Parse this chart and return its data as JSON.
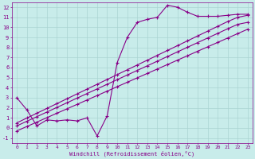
{
  "xlabel": "Windchill (Refroidissement éolien,°C)",
  "bg_color": "#c8ecea",
  "grid_color": "#aad4d2",
  "line_color": "#880088",
  "xlim": [
    -0.5,
    23.5
  ],
  "ylim": [
    -1.5,
    12.5
  ],
  "xticks": [
    0,
    1,
    2,
    3,
    4,
    5,
    6,
    7,
    8,
    9,
    10,
    11,
    12,
    13,
    14,
    15,
    16,
    17,
    18,
    19,
    20,
    21,
    22,
    23
  ],
  "yticks": [
    -1,
    0,
    1,
    2,
    3,
    4,
    5,
    6,
    7,
    8,
    9,
    10,
    11,
    12
  ],
  "wavy_x": [
    0,
    1,
    2,
    3,
    4,
    5,
    6,
    7,
    8,
    9,
    10,
    11,
    12,
    13,
    14,
    15,
    16,
    17,
    18,
    19,
    20,
    21,
    22,
    23
  ],
  "wavy_y": [
    3.0,
    1.8,
    0.2,
    0.8,
    0.7,
    0.8,
    0.7,
    1.0,
    -0.8,
    1.2,
    6.5,
    9.0,
    10.5,
    10.8,
    11.0,
    12.2,
    12.0,
    11.5,
    11.1,
    11.1,
    11.1,
    11.2,
    11.3,
    11.3
  ],
  "line1_x": [
    0,
    1,
    2,
    3,
    4,
    5,
    6,
    7,
    8,
    9,
    10,
    11,
    12,
    13,
    14,
    15,
    16,
    17,
    18,
    19,
    20,
    21,
    22,
    23
  ],
  "line1_y": [
    0.5,
    0.98,
    1.46,
    1.94,
    2.42,
    2.9,
    3.38,
    3.86,
    4.34,
    4.82,
    5.3,
    5.78,
    6.26,
    6.74,
    7.22,
    7.7,
    8.18,
    8.66,
    9.14,
    9.62,
    10.1,
    10.58,
    11.0,
    11.2
  ],
  "line2_x": [
    0,
    1,
    2,
    3,
    4,
    5,
    6,
    7,
    8,
    9,
    10,
    11,
    12,
    13,
    14,
    15,
    16,
    17,
    18,
    19,
    20,
    21,
    22,
    23
  ],
  "line2_y": [
    0.2,
    0.66,
    1.12,
    1.58,
    2.04,
    2.5,
    2.96,
    3.42,
    3.88,
    4.34,
    4.8,
    5.26,
    5.72,
    6.18,
    6.64,
    7.1,
    7.56,
    8.02,
    8.48,
    8.94,
    9.4,
    9.86,
    10.3,
    10.5
  ],
  "line3_x": [
    0,
    1,
    2,
    3,
    4,
    5,
    6,
    7,
    8,
    9,
    10,
    11,
    12,
    13,
    14,
    15,
    16,
    17,
    18,
    19,
    20,
    21,
    22,
    23
  ],
  "line3_y": [
    -0.3,
    0.14,
    0.58,
    1.02,
    1.46,
    1.9,
    2.34,
    2.78,
    3.22,
    3.66,
    4.1,
    4.54,
    4.98,
    5.42,
    5.86,
    6.3,
    6.74,
    7.18,
    7.62,
    8.06,
    8.5,
    8.94,
    9.38,
    9.82
  ]
}
